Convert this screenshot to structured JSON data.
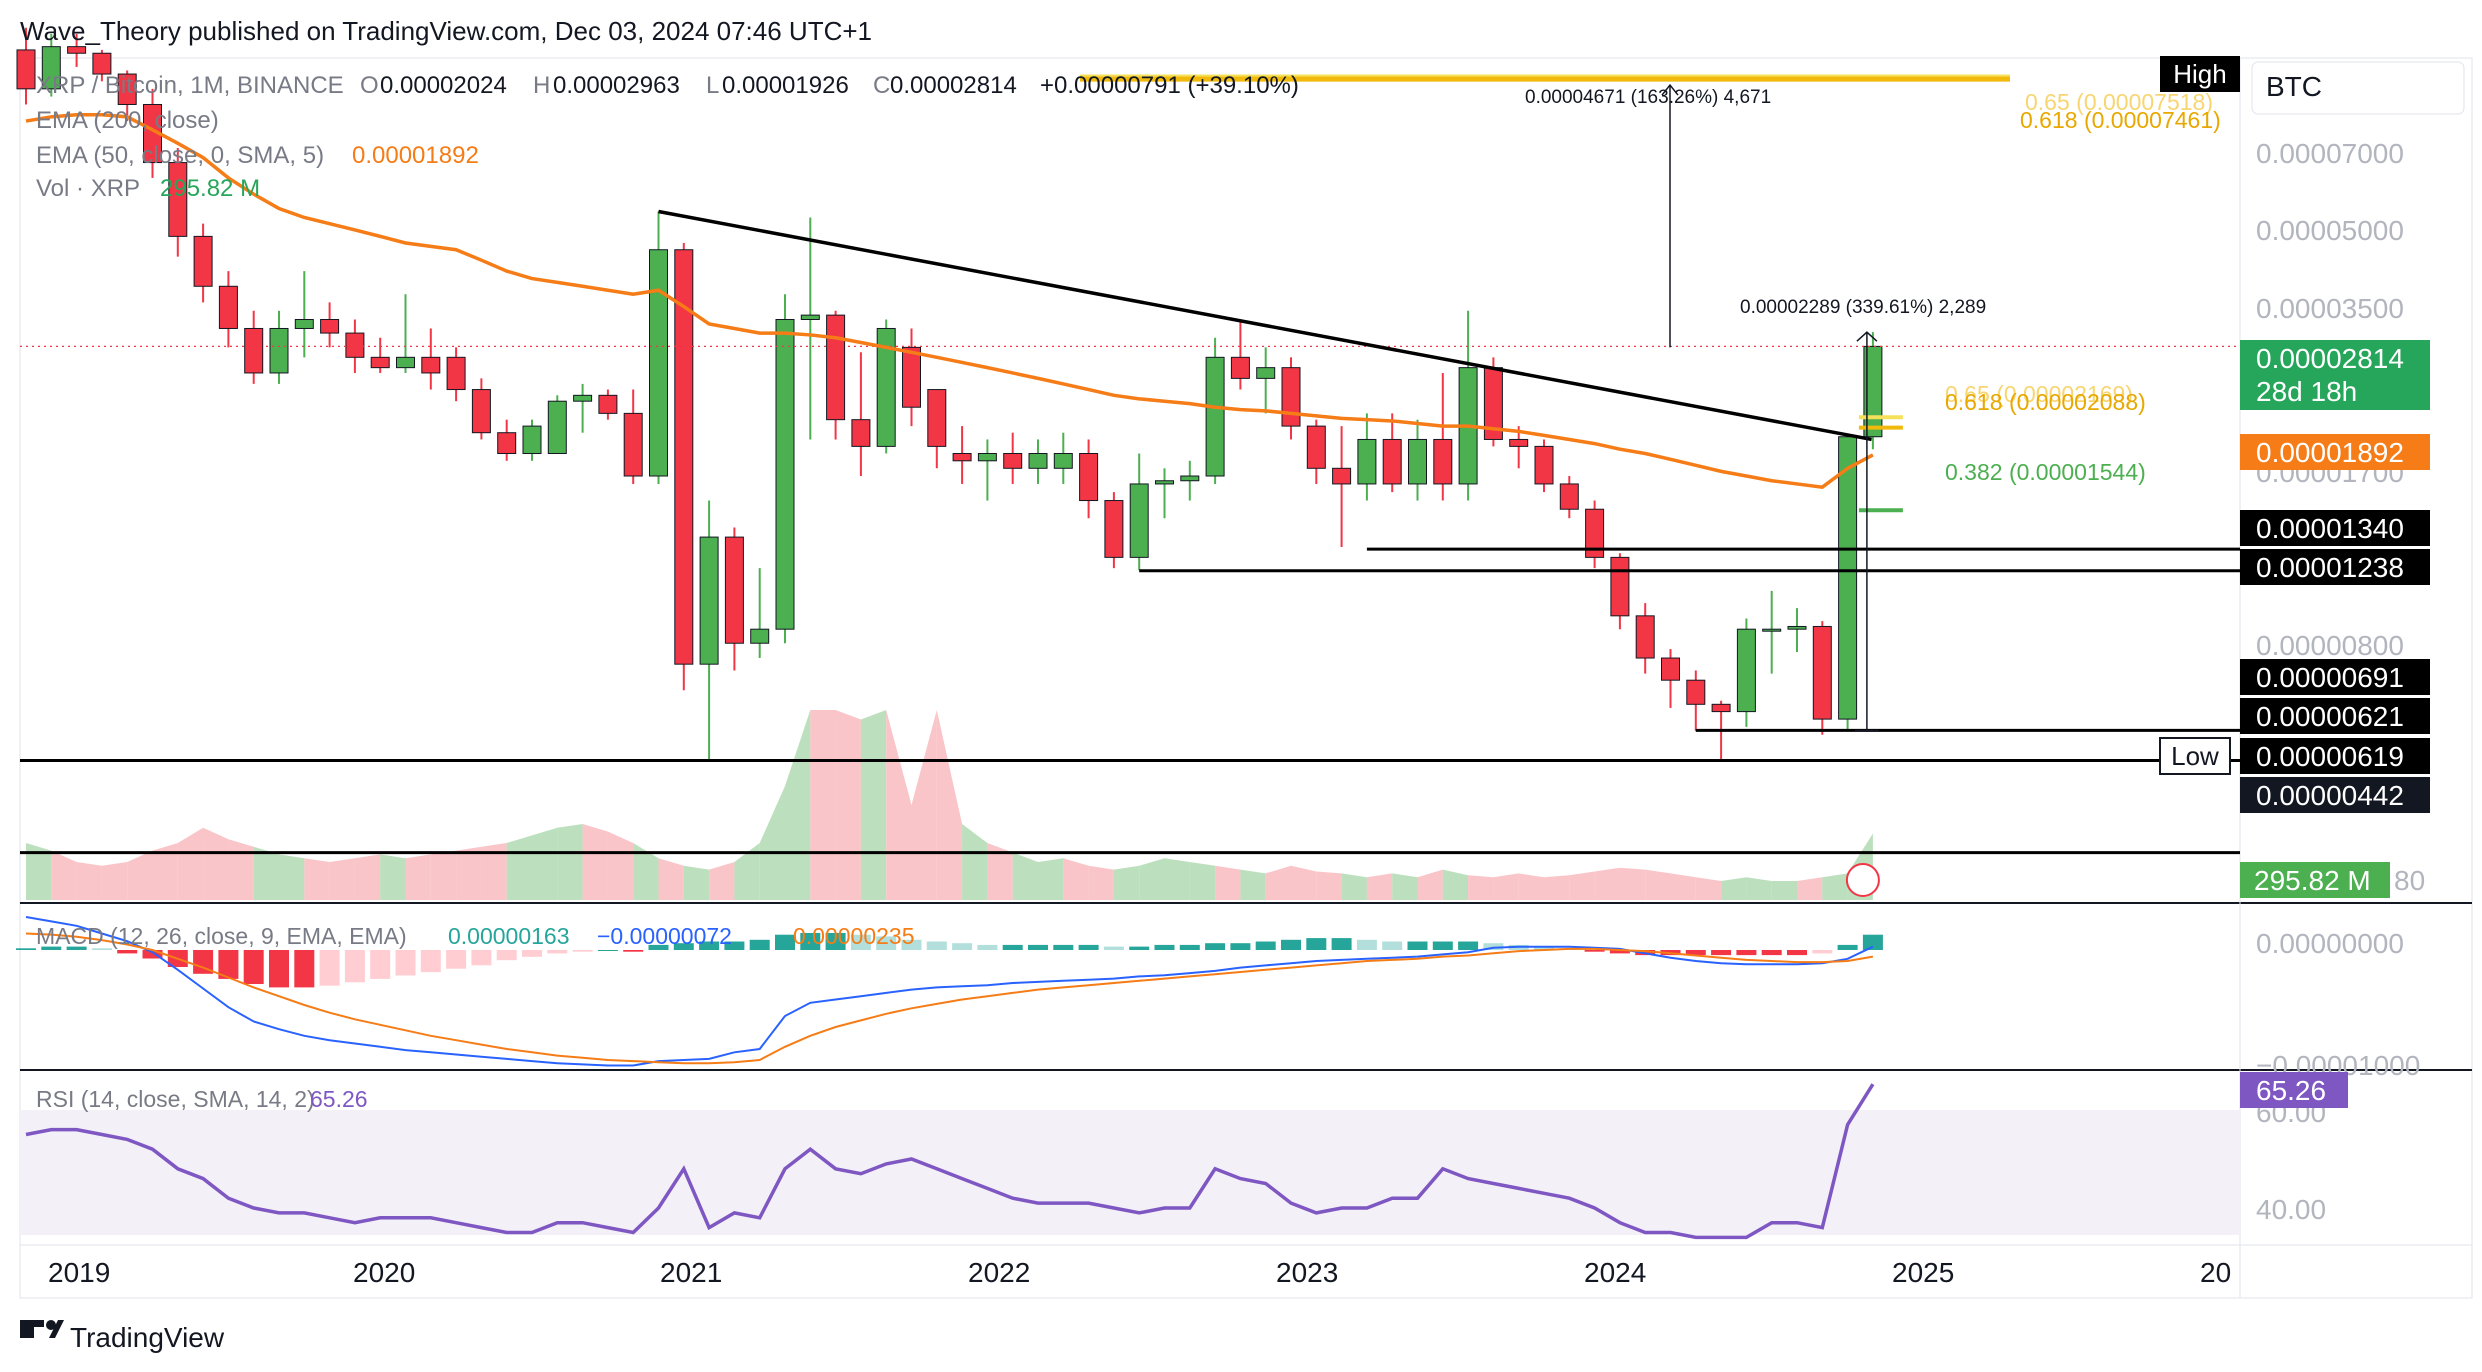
{
  "header": {
    "publisher": "Wave_Theory published on TradingView.com, Dec 03, 2024 07:46 UTC+1"
  },
  "legend": {
    "symbol": "XRP / Bitcoin, 1M, BINANCE",
    "o_label": "O",
    "o": "0.00002024",
    "h_label": "H",
    "h": "0.00002963",
    "l_label": "L",
    "l": "0.00001926",
    "c_label": "C",
    "c": "0.00002814",
    "change": "+0.00000791 (+39.10%)",
    "ema200": "EMA (200, close)",
    "ema50": "EMA (50, close, 0, SMA, 5)",
    "ema50_value": "0.00001892",
    "vol": "Vol · XRP",
    "vol_value": "295.82 M"
  },
  "currency": "BTC",
  "annotations": {
    "top_measure": "0.00004671 (163.26%) 4,671",
    "mid_measure": "0.00002289 (339.61%) 2,289",
    "fib_top_a": "0.65 (0.00007518)",
    "fib_top_b": "0.618 (0.00007461)",
    "fib_mid_a": "0.65 (0.00002169)",
    "fib_mid_b": "0.618 (0.00002088)",
    "fib_382": "0.382 (0.00001544)"
  },
  "price_axis": {
    "ticks": [
      "0.00007000",
      "0.00005000",
      "0.00003500",
      "0.00001700",
      "0.00000800"
    ],
    "high_tag": "High",
    "low_tag": "Low",
    "labels": [
      {
        "text": "0.00002814",
        "sub": "28d 18h",
        "color": "#26a65b"
      },
      {
        "text": "0.00001892",
        "color": "#f57c16"
      },
      {
        "text": "0.00001340",
        "color": "#000000"
      },
      {
        "text": "0.00001238",
        "color": "#000000"
      },
      {
        "text": "0.00000691",
        "color": "#000000"
      },
      {
        "text": "0.00000621",
        "color": "#000000"
      },
      {
        "text": "0.00000619",
        "color": "#000000"
      },
      {
        "text": "0.00000442",
        "color": "#131722"
      }
    ],
    "vol_label": "295.82 M",
    "vol_tick": "80"
  },
  "macd": {
    "title": "MACD (12, 26, close, 9, EMA, EMA)",
    "v1": "0.00000163",
    "v2": "−0.00000072",
    "v3": "0.00000235",
    "ticks": [
      "0.00000000",
      "−0.00001000"
    ]
  },
  "rsi": {
    "title": "RSI (14, close, SMA, 14, 2)",
    "value": "65.26",
    "ticks": [
      "60.00",
      "40.00"
    ]
  },
  "time_axis": [
    "2019",
    "2020",
    "2021",
    "2022",
    "2023",
    "2024",
    "2025",
    "20"
  ],
  "footer": {
    "logo_text": "TradingView"
  },
  "colors": {
    "up": "#4caf50",
    "down": "#f23645",
    "ema50": "#f57c16",
    "macd_line": "#2962ff",
    "signal": "#f57c16",
    "rsi": "#7e57c2",
    "fib_gold": "#f0b90b"
  },
  "chart_data": {
    "type": "candlestick",
    "interval": "1M",
    "y_scale": "log",
    "ylim": [
      4e-06,
      8e-05
    ],
    "candles": [
      {
        "t": "2018-11",
        "o": 8.3e-05,
        "h": 9e-05,
        "l": 6.8e-05,
        "c": 7.2e-05
      },
      {
        "t": "2018-12",
        "o": 7.2e-05,
        "h": 8.8e-05,
        "l": 7e-05,
        "c": 8.4e-05
      },
      {
        "t": "2019-01",
        "o": 8.4e-05,
        "h": 8.8e-05,
        "l": 7.8e-05,
        "c": 8.2e-05
      },
      {
        "t": "2019-02",
        "o": 8.2e-05,
        "h": 8.3e-05,
        "l": 7.4e-05,
        "c": 7.6e-05
      },
      {
        "t": "2019-03",
        "o": 7.6e-05,
        "h": 7.7e-05,
        "l": 6.4e-05,
        "c": 6.8e-05
      },
      {
        "t": "2019-04",
        "o": 6.8e-05,
        "h": 7.2e-05,
        "l": 5.2e-05,
        "c": 5.5e-05
      },
      {
        "t": "2019-05",
        "o": 5.5e-05,
        "h": 5.8e-05,
        "l": 3.9e-05,
        "c": 4.2e-05
      },
      {
        "t": "2019-06",
        "o": 4.2e-05,
        "h": 4.4e-05,
        "l": 3.3e-05,
        "c": 3.5e-05
      },
      {
        "t": "2019-07",
        "o": 3.5e-05,
        "h": 3.7e-05,
        "l": 2.8e-05,
        "c": 3e-05
      },
      {
        "t": "2019-08",
        "o": 3e-05,
        "h": 3.2e-05,
        "l": 2.45e-05,
        "c": 2.55e-05
      },
      {
        "t": "2019-09",
        "o": 2.55e-05,
        "h": 3.2e-05,
        "l": 2.45e-05,
        "c": 3e-05
      },
      {
        "t": "2019-10",
        "o": 3e-05,
        "h": 3.7e-05,
        "l": 2.7e-05,
        "c": 3.1e-05
      },
      {
        "t": "2019-11",
        "o": 3.1e-05,
        "h": 3.3e-05,
        "l": 2.8e-05,
        "c": 2.95e-05
      },
      {
        "t": "2019-12",
        "o": 2.95e-05,
        "h": 3.1e-05,
        "l": 2.55e-05,
        "c": 2.7e-05
      },
      {
        "t": "2020-01",
        "o": 2.7e-05,
        "h": 2.9e-05,
        "l": 2.55e-05,
        "c": 2.6e-05
      },
      {
        "t": "2020-02",
        "o": 2.6e-05,
        "h": 3.4e-05,
        "l": 2.55e-05,
        "c": 2.7e-05
      },
      {
        "t": "2020-03",
        "o": 2.7e-05,
        "h": 3e-05,
        "l": 2.4e-05,
        "c": 2.55e-05
      },
      {
        "t": "2020-04",
        "o": 2.7e-05,
        "h": 2.8e-05,
        "l": 2.3e-05,
        "c": 2.4e-05
      },
      {
        "t": "2020-05",
        "o": 2.4e-05,
        "h": 2.5e-05,
        "l": 2e-05,
        "c": 2.05e-05
      },
      {
        "t": "2020-06",
        "o": 2.05e-05,
        "h": 2.15e-05,
        "l": 1.85e-05,
        "c": 1.9e-05
      },
      {
        "t": "2020-07",
        "o": 1.9e-05,
        "h": 2.15e-05,
        "l": 1.85e-05,
        "c": 2.1e-05
      },
      {
        "t": "2020-08",
        "o": 1.9e-05,
        "h": 2.35e-05,
        "l": 1.9e-05,
        "c": 2.3e-05
      },
      {
        "t": "2020-09",
        "o": 2.3e-05,
        "h": 2.45e-05,
        "l": 2.05e-05,
        "c": 2.35e-05
      },
      {
        "t": "2020-10",
        "o": 2.35e-05,
        "h": 2.4e-05,
        "l": 2.15e-05,
        "c": 2.2e-05
      },
      {
        "t": "2020-11",
        "o": 2.2e-05,
        "h": 2.4e-05,
        "l": 1.7e-05,
        "c": 1.75e-05
      },
      {
        "t": "2020-12",
        "o": 1.75e-05,
        "h": 4.6e-05,
        "l": 1.7e-05,
        "c": 4e-05
      },
      {
        "t": "2021-01",
        "o": 4e-05,
        "h": 4.1e-05,
        "l": 8e-06,
        "c": 8.8e-06
      },
      {
        "t": "2021-02",
        "o": 8.8e-06,
        "h": 1.6e-05,
        "l": 6.2e-06,
        "c": 1.4e-05
      },
      {
        "t": "2021-03",
        "o": 1.4e-05,
        "h": 1.45e-05,
        "l": 8.6e-06,
        "c": 9.5e-06
      },
      {
        "t": "2021-04",
        "o": 9.5e-06,
        "h": 1.25e-05,
        "l": 9e-06,
        "c": 1e-05
      },
      {
        "t": "2021-05",
        "o": 1e-05,
        "h": 3.4e-05,
        "l": 9.5e-06,
        "c": 3.1e-05
      },
      {
        "t": "2021-06",
        "o": 3.1e-05,
        "h": 4.5e-05,
        "l": 2e-05,
        "c": 3.15e-05
      },
      {
        "t": "2021-07",
        "o": 3.15e-05,
        "h": 3.2e-05,
        "l": 2e-05,
        "c": 2.15e-05
      },
      {
        "t": "2021-08",
        "o": 2.15e-05,
        "h": 2.75e-05,
        "l": 1.75e-05,
        "c": 1.95e-05
      },
      {
        "t": "2021-09",
        "o": 1.95e-05,
        "h": 3.1e-05,
        "l": 1.9e-05,
        "c": 3e-05
      },
      {
        "t": "2021-10",
        "o": 2.8e-05,
        "h": 3e-05,
        "l": 2.1e-05,
        "c": 2.25e-05
      },
      {
        "t": "2021-11",
        "o": 2.4e-05,
        "h": 2.4e-05,
        "l": 1.8e-05,
        "c": 1.95e-05
      },
      {
        "t": "2021-12",
        "o": 1.9e-05,
        "h": 2.1e-05,
        "l": 1.7e-05,
        "c": 1.85e-05
      },
      {
        "t": "2022-01",
        "o": 1.85e-05,
        "h": 2e-05,
        "l": 1.6e-05,
        "c": 1.9e-05
      },
      {
        "t": "2022-02",
        "o": 1.9e-05,
        "h": 2.05e-05,
        "l": 1.7e-05,
        "c": 1.8e-05
      },
      {
        "t": "2022-03",
        "o": 1.8e-05,
        "h": 2e-05,
        "l": 1.7e-05,
        "c": 1.9e-05
      },
      {
        "t": "2022-04",
        "o": 1.8e-05,
        "h": 2.05e-05,
        "l": 1.7e-05,
        "c": 1.9e-05
      },
      {
        "t": "2022-05",
        "o": 1.9e-05,
        "h": 2e-05,
        "l": 1.5e-05,
        "c": 1.6e-05
      },
      {
        "t": "2022-06",
        "o": 1.6e-05,
        "h": 1.65e-05,
        "l": 1.25e-05,
        "c": 1.3e-05
      },
      {
        "t": "2022-07",
        "o": 1.3e-05,
        "h": 1.9e-05,
        "l": 1.24e-05,
        "c": 1.7e-05
      },
      {
        "t": "2022-08",
        "o": 1.7e-05,
        "h": 1.8e-05,
        "l": 1.5e-05,
        "c": 1.72e-05
      },
      {
        "t": "2022-09",
        "o": 1.72e-05,
        "h": 1.85e-05,
        "l": 1.6e-05,
        "c": 1.75e-05
      },
      {
        "t": "2022-10",
        "o": 1.75e-05,
        "h": 2.9e-05,
        "l": 1.7e-05,
        "c": 2.7e-05
      },
      {
        "t": "2022-11",
        "o": 2.7e-05,
        "h": 3.1e-05,
        "l": 2.4e-05,
        "c": 2.5e-05
      },
      {
        "t": "2022-12",
        "o": 2.5e-05,
        "h": 2.8e-05,
        "l": 2.2e-05,
        "c": 2.6e-05
      },
      {
        "t": "2023-01",
        "o": 2.6e-05,
        "h": 2.7e-05,
        "l": 2e-05,
        "c": 2.1e-05
      },
      {
        "t": "2023-02",
        "o": 2.1e-05,
        "h": 2.15e-05,
        "l": 1.7e-05,
        "c": 1.8e-05
      },
      {
        "t": "2023-03",
        "o": 1.8e-05,
        "h": 2.1e-05,
        "l": 1.35e-05,
        "c": 1.7e-05
      },
      {
        "t": "2023-04",
        "o": 1.7e-05,
        "h": 2.2e-05,
        "l": 1.6e-05,
        "c": 2e-05
      },
      {
        "t": "2023-05",
        "o": 2e-05,
        "h": 2.2e-05,
        "l": 1.65e-05,
        "c": 1.7e-05
      },
      {
        "t": "2023-06",
        "o": 1.7e-05,
        "h": 2.15e-05,
        "l": 1.6e-05,
        "c": 2e-05
      },
      {
        "t": "2023-07",
        "o": 2e-05,
        "h": 2.55e-05,
        "l": 1.6e-05,
        "c": 1.7e-05
      },
      {
        "t": "2023-08",
        "o": 1.7e-05,
        "h": 3.2e-05,
        "l": 1.6e-05,
        "c": 2.6e-05
      },
      {
        "t": "2023-09",
        "o": 2.6e-05,
        "h": 2.7e-05,
        "l": 1.95e-05,
        "c": 2e-05
      },
      {
        "t": "2023-10",
        "o": 2e-05,
        "h": 2.1e-05,
        "l": 1.8e-05,
        "c": 1.95e-05
      },
      {
        "t": "2023-11",
        "o": 1.95e-05,
        "h": 2e-05,
        "l": 1.65e-05,
        "c": 1.7e-05
      },
      {
        "t": "2023-12",
        "o": 1.7e-05,
        "h": 1.75e-05,
        "l": 1.5e-05,
        "c": 1.55e-05
      },
      {
        "t": "2024-01",
        "o": 1.55e-05,
        "h": 1.6e-05,
        "l": 1.25e-05,
        "c": 1.3e-05
      },
      {
        "t": "2024-02",
        "o": 1.3e-05,
        "h": 1.32e-05,
        "l": 1e-05,
        "c": 1.05e-05
      },
      {
        "t": "2024-03",
        "o": 1.05e-05,
        "h": 1.1e-05,
        "l": 8.5e-06,
        "c": 9e-06
      },
      {
        "t": "2024-04",
        "o": 9e-06,
        "h": 9.3e-06,
        "l": 7.5e-06,
        "c": 8.3e-06
      },
      {
        "t": "2024-05",
        "o": 8.3e-06,
        "h": 8.6e-06,
        "l": 6.9e-06,
        "c": 7.6e-06
      },
      {
        "t": "2024-06",
        "o": 7.6e-06,
        "h": 7.7e-06,
        "l": 6.2e-06,
        "c": 7.4e-06
      },
      {
        "t": "2024-07",
        "o": 7.4e-06,
        "h": 1.04e-05,
        "l": 7e-06,
        "c": 1e-05
      },
      {
        "t": "2024-08",
        "o": 1e-05,
        "h": 1.15e-05,
        "l": 8.5e-06,
        "c": 1e-05
      },
      {
        "t": "2024-09",
        "o": 1e-05,
        "h": 1.08e-05,
        "l": 9.2e-06,
        "c": 1.01e-05
      },
      {
        "t": "2024-10",
        "o": 1.01e-05,
        "h": 1.03e-05,
        "l": 6.8e-06,
        "c": 7.2e-06
      },
      {
        "t": "2024-11",
        "o": 7.2e-06,
        "h": 2e-05,
        "l": 6.9e-06,
        "c": 2.02e-05
      },
      {
        "t": "2024-12",
        "o": 2.02e-05,
        "h": 2.96e-05,
        "l": 1.93e-05,
        "c": 2.81e-05
      }
    ],
    "ema50": [
      6.4e-05,
      6.5e-05,
      6.55e-05,
      6.55e-05,
      6.5e-05,
      6.2e-05,
      5.9e-05,
      5.6e-05,
      5.2e-05,
      4.9e-05,
      4.65e-05,
      4.5e-05,
      4.4e-05,
      4.3e-05,
      4.2e-05,
      4.1e-05,
      4.05e-05,
      4e-05,
      3.85e-05,
      3.7e-05,
      3.6e-05,
      3.55e-05,
      3.5e-05,
      3.45e-05,
      3.4e-05,
      3.45e-05,
      3.25e-05,
      3.05e-05,
      3e-05,
      2.95e-05,
      2.95e-05,
      2.93e-05,
      2.9e-05,
      2.85e-05,
      2.8e-05,
      2.75e-05,
      2.7e-05,
      2.65e-05,
      2.6e-05,
      2.55e-05,
      2.5e-05,
      2.45e-05,
      2.4e-05,
      2.35e-05,
      2.32e-05,
      2.3e-05,
      2.28e-05,
      2.25e-05,
      2.23e-05,
      2.22e-05,
      2.2e-05,
      2.18e-05,
      2.16e-05,
      2.15e-05,
      2.14e-05,
      2.12e-05,
      2.1e-05,
      2.1e-05,
      2.08e-05,
      2.06e-05,
      2.03e-05,
      2e-05,
      1.97e-05,
      1.93e-05,
      1.9e-05,
      1.86e-05,
      1.82e-05,
      1.78e-05,
      1.75e-05,
      1.72e-05,
      1.7e-05,
      1.68e-05,
      1.8e-05,
      1.89e-05
    ],
    "volume": [
      0.3,
      0.26,
      0.2,
      0.18,
      0.2,
      0.26,
      0.3,
      0.38,
      0.32,
      0.28,
      0.24,
      0.22,
      0.2,
      0.22,
      0.24,
      0.22,
      0.24,
      0.26,
      0.28,
      0.3,
      0.34,
      0.38,
      0.4,
      0.36,
      0.3,
      0.22,
      0.18,
      0.16,
      0.2,
      0.3,
      0.6,
      1.0,
      1.0,
      0.95,
      1.0,
      0.5,
      1.0,
      0.4,
      0.3,
      0.25,
      0.2,
      0.22,
      0.18,
      0.16,
      0.18,
      0.22,
      0.2,
      0.18,
      0.16,
      0.14,
      0.18,
      0.15,
      0.14,
      0.12,
      0.14,
      0.12,
      0.16,
      0.13,
      0.12,
      0.14,
      0.12,
      0.13,
      0.15,
      0.17,
      0.16,
      0.14,
      0.12,
      0.1,
      0.12,
      0.1,
      0.1,
      0.12,
      0.14,
      0.35
    ],
    "macd_hist": [
      0.1,
      0.2,
      0.2,
      0.1,
      -0.2,
      -0.5,
      -1.0,
      -1.4,
      -1.7,
      -2.0,
      -2.2,
      -2.2,
      -2.1,
      -1.9,
      -1.7,
      -1.5,
      -1.3,
      -1.1,
      -0.9,
      -0.6,
      -0.4,
      -0.2,
      -0.1,
      0.0,
      -0.1,
      0.3,
      0.4,
      0.5,
      0.5,
      0.6,
      0.9,
      1.0,
      1.0,
      0.9,
      0.8,
      0.6,
      0.5,
      0.4,
      0.3,
      0.3,
      0.3,
      0.3,
      0.3,
      0.2,
      0.2,
      0.3,
      0.3,
      0.4,
      0.4,
      0.5,
      0.6,
      0.7,
      0.7,
      0.6,
      0.5,
      0.5,
      0.5,
      0.5,
      0.4,
      0.3,
      0.2,
      0.1,
      -0.1,
      -0.2,
      -0.3,
      -0.3,
      -0.3,
      -0.3,
      -0.3,
      -0.3,
      -0.3,
      -0.2,
      0.3,
      0.9
    ],
    "macd_line": [
      3.0,
      2.6,
      2.2,
      1.5,
      0.8,
      -0.2,
      -1.8,
      -3.5,
      -5.2,
      -6.5,
      -7.2,
      -7.8,
      -8.2,
      -8.5,
      -8.8,
      -9.1,
      -9.3,
      -9.5,
      -9.7,
      -9.9,
      -10.1,
      -10.3,
      -10.4,
      -10.5,
      -10.5,
      -10.1,
      -10.0,
      -9.9,
      -9.3,
      -9.0,
      -6.0,
      -4.8,
      -4.5,
      -4.2,
      -3.9,
      -3.6,
      -3.4,
      -3.3,
      -3.2,
      -3.0,
      -2.9,
      -2.8,
      -2.7,
      -2.6,
      -2.4,
      -2.3,
      -2.1,
      -1.9,
      -1.6,
      -1.4,
      -1.2,
      -1.0,
      -0.9,
      -0.8,
      -0.7,
      -0.6,
      -0.4,
      -0.2,
      0.2,
      0.3,
      0.3,
      0.3,
      0.2,
      0.1,
      -0.3,
      -0.7,
      -1.0,
      -1.2,
      -1.3,
      -1.3,
      -1.3,
      -1.2,
      -0.8,
      0.3
    ],
    "signal_line": [
      1.5,
      1.4,
      1.2,
      0.9,
      0.5,
      0.0,
      -0.8,
      -1.6,
      -2.5,
      -3.4,
      -4.2,
      -5.0,
      -5.7,
      -6.3,
      -6.8,
      -7.3,
      -7.8,
      -8.2,
      -8.6,
      -9.0,
      -9.3,
      -9.6,
      -9.8,
      -10.0,
      -10.1,
      -10.2,
      -10.3,
      -10.3,
      -10.2,
      -10.0,
      -8.8,
      -7.8,
      -7.0,
      -6.4,
      -5.8,
      -5.3,
      -4.9,
      -4.5,
      -4.2,
      -3.9,
      -3.6,
      -3.4,
      -3.2,
      -3.0,
      -2.8,
      -2.6,
      -2.4,
      -2.2,
      -2.0,
      -1.8,
      -1.6,
      -1.4,
      -1.2,
      -1.0,
      -0.9,
      -0.8,
      -0.6,
      -0.5,
      -0.3,
      -0.1,
      0.0,
      0.1,
      0.1,
      0.0,
      -0.1,
      -0.3,
      -0.5,
      -0.7,
      -0.9,
      -1.0,
      -1.1,
      -1.1,
      -1.0,
      -0.6
    ],
    "rsi": [
      55,
      56,
      56,
      55,
      54,
      52,
      48,
      46,
      42,
      40,
      39,
      39,
      38,
      37,
      38,
      38,
      38,
      37,
      36,
      35,
      35,
      37,
      37,
      36,
      35,
      40,
      48,
      36,
      39,
      38,
      48,
      52,
      48,
      47,
      49,
      50,
      48,
      46,
      44,
      42,
      41,
      41,
      41,
      40,
      39,
      40,
      40,
      48,
      46,
      45,
      41,
      39,
      40,
      40,
      42,
      42,
      48,
      46,
      45,
      44,
      43,
      42,
      40,
      37,
      35,
      35,
      34,
      34,
      34,
      37,
      37,
      36,
      57,
      65.26
    ]
  }
}
